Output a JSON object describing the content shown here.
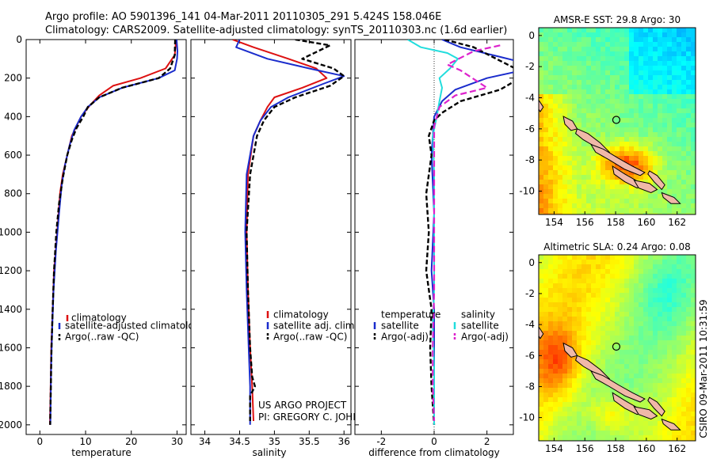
{
  "header": {
    "line1": "Argo profile: AO 5901396_141 04-Mar-2011 20110305_291 5.424S 158.046E",
    "line2": "Climatology: CARS2009. Satellite-adjusted climatology: synTS_20110303.nc (1.6d earlier)"
  },
  "credit": {
    "line1": "US ARGO PROJECT",
    "line2": "PI: GREGORY C. JOHNSON"
  },
  "side_stamp": "CSIRO 09-Mar-2011 10:31:59",
  "colors": {
    "clim": "#dd1111",
    "sat": "#1a2ccc",
    "argo": "#000000",
    "sal_sat": "#22dddd",
    "sal_argo": "#dd22cc"
  },
  "chart_data": [
    {
      "type": "line",
      "panel": "temperature",
      "xlabel": "temperature",
      "xlim": [
        -3,
        32
      ],
      "xticks": [
        0,
        10,
        20,
        30
      ],
      "ylim": [
        2050,
        0
      ],
      "yticks": [
        0,
        200,
        400,
        600,
        800,
        1000,
        1200,
        1400,
        1600,
        1800,
        2000
      ],
      "legend": [
        "climatology",
        "satellite-adjusted climatology",
        "Argo(..raw -QC)"
      ],
      "series": [
        {
          "name": "climatology",
          "role": "clim",
          "values": [
            [
              29.8,
              0
            ],
            [
              29.5,
              80
            ],
            [
              27.5,
              150
            ],
            [
              22,
              200
            ],
            [
              16,
              240
            ],
            [
              13,
              290
            ],
            [
              11,
              340
            ],
            [
              9,
              400
            ],
            [
              8,
              450
            ],
            [
              7,
              500
            ],
            [
              6,
              600
            ],
            [
              5,
              700
            ],
            [
              4.4,
              800
            ],
            [
              3.8,
              1000
            ],
            [
              3.1,
              1200
            ],
            [
              2.8,
              1400
            ],
            [
              2.5,
              1600
            ],
            [
              2.35,
              1800
            ],
            [
              2.2,
              2000
            ]
          ]
        },
        {
          "name": "satellite-adjusted climatology",
          "role": "sat",
          "values": [
            [
              29.9,
              0
            ],
            [
              30.1,
              60
            ],
            [
              30,
              100
            ],
            [
              29.5,
              160
            ],
            [
              26,
              200
            ],
            [
              18,
              250
            ],
            [
              13,
              300
            ],
            [
              10.5,
              350
            ],
            [
              9,
              400
            ],
            [
              7.5,
              470
            ],
            [
              6.5,
              550
            ],
            [
              5.5,
              650
            ],
            [
              4.8,
              750
            ],
            [
              4.2,
              900
            ],
            [
              3.5,
              1100
            ],
            [
              3,
              1300
            ],
            [
              2.7,
              1500
            ],
            [
              2.45,
              1700
            ],
            [
              2.3,
              2000
            ]
          ]
        },
        {
          "name": "Argo(..raw -QC)",
          "role": "argo",
          "values": [
            [
              29.6,
              0
            ],
            [
              29.5,
              80
            ],
            [
              28.5,
              150
            ],
            [
              26,
              200
            ],
            [
              18,
              250
            ],
            [
              13,
              300
            ],
            [
              10.5,
              350
            ],
            [
              9.5,
              400
            ],
            [
              8,
              460
            ],
            [
              7,
              520
            ],
            [
              6,
              600
            ],
            [
              5,
              720
            ],
            [
              4.2,
              850
            ],
            [
              3.6,
              1000
            ],
            [
              3.1,
              1200
            ],
            [
              2.8,
              1400
            ],
            [
              2.55,
              1600
            ],
            [
              2.4,
              1800
            ],
            [
              2.25,
              2000
            ]
          ]
        }
      ]
    },
    {
      "type": "line",
      "panel": "salinity",
      "xlabel": "salinity",
      "xlim": [
        33.8,
        36.1
      ],
      "xticks": [
        34,
        34.5,
        35,
        35.5,
        36
      ],
      "ylim": [
        2050,
        0
      ],
      "legend": [
        "climatology",
        "satellite adj. clim.",
        "Argo(..raw -QC)"
      ],
      "series": [
        {
          "name": "climatology",
          "role": "clim",
          "values": [
            [
              34.4,
              0
            ],
            [
              34.7,
              40
            ],
            [
              35.2,
              100
            ],
            [
              35.6,
              150
            ],
            [
              35.75,
              200
            ],
            [
              35.4,
              250
            ],
            [
              35.0,
              300
            ],
            [
              34.9,
              350
            ],
            [
              34.8,
              420
            ],
            [
              34.7,
              500
            ],
            [
              34.62,
              700
            ],
            [
              34.6,
              1000
            ],
            [
              34.62,
              1300
            ],
            [
              34.65,
              1600
            ],
            [
              34.68,
              1800
            ],
            [
              34.7,
              1980
            ]
          ]
        },
        {
          "name": "satellite adj. clim.",
          "role": "sat",
          "values": [
            [
              34.5,
              0
            ],
            [
              34.45,
              40
            ],
            [
              34.9,
              100
            ],
            [
              35.5,
              150
            ],
            [
              36.0,
              190
            ],
            [
              35.7,
              230
            ],
            [
              35.2,
              300
            ],
            [
              34.95,
              350
            ],
            [
              34.8,
              420
            ],
            [
              34.7,
              500
            ],
            [
              34.6,
              700
            ],
            [
              34.58,
              1000
            ],
            [
              34.6,
              1300
            ],
            [
              34.63,
              1600
            ],
            [
              34.65,
              1800
            ],
            [
              34.65,
              2000
            ]
          ]
        },
        {
          "name": "Argo(..raw -QC)",
          "role": "argo",
          "values": [
            [
              35.3,
              0
            ],
            [
              35.8,
              30
            ],
            [
              35.4,
              100
            ],
            [
              35.85,
              150
            ],
            [
              36.0,
              190
            ],
            [
              35.8,
              240
            ],
            [
              35.3,
              300
            ],
            [
              35.0,
              350
            ],
            [
              34.85,
              420
            ],
            [
              34.75,
              500
            ],
            [
              34.65,
              700
            ],
            [
              34.6,
              1000
            ],
            [
              34.62,
              1300
            ],
            [
              34.65,
              1600
            ],
            [
              34.68,
              1750
            ],
            [
              34.72,
              1800
            ],
            [
              34.65,
              1850
            ],
            [
              34.65,
              1980
            ]
          ]
        }
      ]
    },
    {
      "type": "line",
      "panel": "difference",
      "xlabel": "difference from climatology",
      "xlim": [
        -3,
        3
      ],
      "xticks": [
        -2,
        0,
        2
      ],
      "ylim": [
        2050,
        0
      ],
      "legend_headers": [
        "temperature",
        "salinity"
      ],
      "legend": [
        "satellite",
        "Argo(-adj)",
        "satellite",
        "Argo(-adj)"
      ],
      "series": [
        {
          "name": "temperature satellite",
          "role": "sat",
          "values": [
            [
              0.3,
              0
            ],
            [
              1,
              40
            ],
            [
              2.5,
              90
            ],
            [
              4,
              140
            ],
            [
              2,
              200
            ],
            [
              0.8,
              260
            ],
            [
              0.3,
              320
            ],
            [
              0,
              400
            ],
            [
              -0.1,
              600
            ],
            [
              0,
              900
            ],
            [
              -0.1,
              1200
            ],
            [
              0,
              1400
            ],
            [
              0,
              1700
            ],
            [
              0,
              2000
            ]
          ]
        },
        {
          "name": "temperature Argo(-adj)",
          "role": "argo",
          "values": [
            [
              0.4,
              0
            ],
            [
              1.5,
              40
            ],
            [
              2.5,
              110
            ],
            [
              3.5,
              180
            ],
            [
              2.5,
              260
            ],
            [
              1,
              320
            ],
            [
              0.3,
              380
            ],
            [
              0,
              420
            ],
            [
              -0.2,
              500
            ],
            [
              -0.1,
              600
            ],
            [
              -0.3,
              800
            ],
            [
              -0.2,
              1000
            ],
            [
              -0.3,
              1200
            ],
            [
              -0.1,
              1400
            ],
            [
              -0.15,
              1600
            ],
            [
              -0.1,
              1800
            ],
            [
              0,
              2000
            ]
          ]
        },
        {
          "name": "salinity satellite",
          "role": "sal_sat",
          "values": [
            [
              -1,
              0
            ],
            [
              -0.5,
              40
            ],
            [
              0.5,
              70
            ],
            [
              0.9,
              100
            ],
            [
              0.6,
              150
            ],
            [
              0.2,
              200
            ],
            [
              0.3,
              250
            ],
            [
              0.2,
              320
            ],
            [
              0.1,
              400
            ],
            [
              -0.05,
              500
            ],
            [
              0,
              700
            ],
            [
              0,
              1000
            ],
            [
              0,
              1300
            ],
            [
              -0.05,
              1500
            ],
            [
              0,
              1700
            ],
            [
              0,
              1900
            ],
            [
              0,
              2000
            ]
          ]
        },
        {
          "name": "salinity Argo(-adj)",
          "role": "sal_argo",
          "values": [
            [
              2.5,
              30
            ],
            [
              1.5,
              60
            ],
            [
              0.5,
              130
            ],
            [
              1.0,
              160
            ],
            [
              2.0,
              250
            ],
            [
              0.8,
              290
            ],
            [
              0.2,
              350
            ],
            [
              0,
              450
            ],
            [
              0,
              1000
            ],
            [
              0,
              1300
            ],
            [
              -0.05,
              1600
            ],
            [
              -0.05,
              1800
            ],
            [
              0,
              1980
            ]
          ]
        }
      ]
    },
    {
      "type": "heatmap",
      "panel": "sst-map",
      "title": "AMSR-E SST: 29.8 Argo: 30",
      "xticks": [
        154,
        156,
        158,
        160,
        162
      ],
      "yticks": [
        0,
        -2,
        -4,
        -6,
        -8,
        -10
      ],
      "xlim": [
        153,
        163.2
      ],
      "ylim": [
        -11.5,
        0.5
      ],
      "marker": {
        "lon": 158.046,
        "lat": -5.424
      }
    },
    {
      "type": "heatmap",
      "panel": "sla-map",
      "title": "Altimetric SLA: 0.24 Argo: 0.08",
      "xticks": [
        154,
        156,
        158,
        160,
        162
      ],
      "yticks": [
        0,
        -2,
        -4,
        -6,
        -8,
        -10
      ],
      "xlim": [
        153,
        163.2
      ],
      "ylim": [
        -11.5,
        0.5
      ],
      "marker": {
        "lon": 158.046,
        "lat": -5.424
      }
    }
  ]
}
